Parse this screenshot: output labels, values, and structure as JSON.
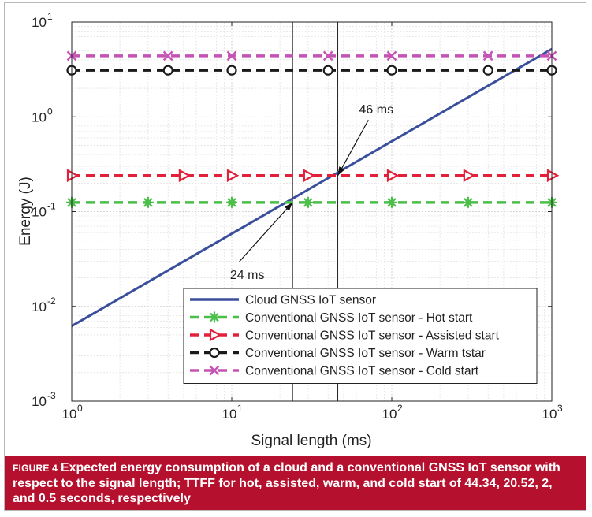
{
  "chart_data": {
    "type": "line",
    "xscale": "log",
    "yscale": "log",
    "xlim": [
      1,
      1000
    ],
    "ylim": [
      0.001,
      10
    ],
    "xlabel": "Signal length (ms)",
    "ylabel": "Energy (J)",
    "grid": true,
    "legend_position": "bottom-right",
    "x_ticks": [
      {
        "value": 1,
        "base": "10",
        "exp": "0"
      },
      {
        "value": 10,
        "base": "10",
        "exp": "1"
      },
      {
        "value": 100,
        "base": "10",
        "exp": "2"
      },
      {
        "value": 1000,
        "base": "10",
        "exp": "3"
      }
    ],
    "y_ticks": [
      {
        "value": 0.001,
        "base": "10",
        "exp": "-3"
      },
      {
        "value": 0.01,
        "base": "10",
        "exp": "-2"
      },
      {
        "value": 0.1,
        "base": "10",
        "exp": "-1"
      },
      {
        "value": 1,
        "base": "10",
        "exp": "0"
      },
      {
        "value": 10,
        "base": "10",
        "exp": "1"
      }
    ],
    "series": [
      {
        "name": "Cloud GNSS IoT sensor",
        "color": "#3a4f9c",
        "style": "solid",
        "marker": "none",
        "x": [
          1,
          1000
        ],
        "y": [
          0.0062,
          5.2
        ]
      },
      {
        "name": "Conventional GNSS IoT sensor - Hot start",
        "color": "#4cbf4a",
        "style": "dashed",
        "marker": "asterisk",
        "x": [
          1,
          1000
        ],
        "y": [
          0.125,
          0.125
        ],
        "marker_x": [
          1,
          3,
          10,
          30,
          100,
          300,
          1000
        ]
      },
      {
        "name": "Conventional GNSS IoT sensor - Assisted start",
        "color": "#e3203a",
        "style": "dashed",
        "marker": "triangle-right",
        "x": [
          1,
          1000
        ],
        "y": [
          0.24,
          0.24
        ],
        "marker_x": [
          1,
          5,
          10,
          30,
          100,
          300,
          1000
        ]
      },
      {
        "name": "Conventional GNSS IoT sensor - Warm tstar",
        "color": "#1a1a1a",
        "style": "dashed",
        "marker": "circle",
        "x": [
          1,
          1000
        ],
        "y": [
          3.1,
          3.1
        ],
        "marker_x": [
          1,
          4,
          10,
          40,
          100,
          400,
          1000
        ]
      },
      {
        "name": "Conventional GNSS IoT sensor - Cold start",
        "color": "#c553b4",
        "style": "dashed",
        "marker": "x",
        "x": [
          1,
          1000
        ],
        "y": [
          4.4,
          4.4
        ],
        "marker_x": [
          1,
          4,
          10,
          40,
          100,
          400,
          1000
        ]
      }
    ],
    "vertical_lines": [
      24,
      46
    ],
    "annotations": [
      {
        "text": "46 ms",
        "point_x": 46,
        "point_y": 0.24,
        "text_x": 80,
        "text_y": 1.08
      },
      {
        "text": "24 ms",
        "point_x": 24,
        "point_y": 0.125,
        "text_x": 12.5,
        "text_y": 0.0195
      }
    ]
  },
  "caption": {
    "label": "FIGURE 4",
    "text": "Expected energy consumption of a cloud and a conventional GNSS IoT sensor with respect to the signal length; TTFF for hot, assisted, warm, and cold start of 44.34, 20.52, 2, and 0.5 seconds, respectively"
  }
}
